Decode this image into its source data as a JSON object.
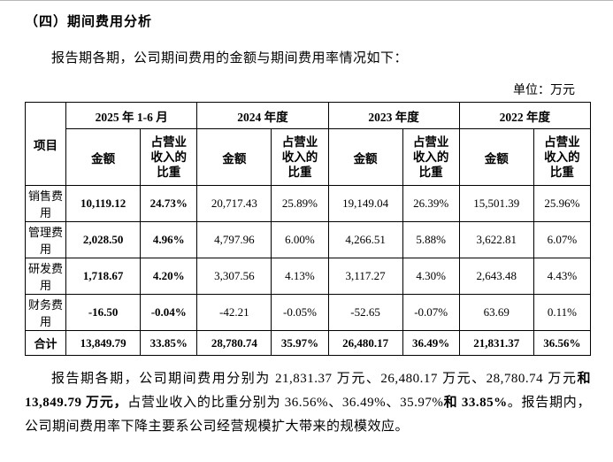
{
  "page": {
    "heading": "（四）期间费用分析",
    "intro": "报告期各期，公司期间费用的金额与期间费用率情况如下：",
    "unit_label": "单位：万元"
  },
  "table": {
    "item_header": "项目",
    "amount_header": "金额",
    "ratio_header": "占营业收入的比重",
    "periods": [
      "2025 年 1-6 月",
      "2024 年度",
      "2023 年度",
      "2022 年度"
    ],
    "rows": [
      {
        "item": "销售费用",
        "values": [
          "10,119.12",
          "24.73%",
          "20,717.43",
          "25.89%",
          "19,149.04",
          "26.39%",
          "15,501.39",
          "25.96%"
        ]
      },
      {
        "item": "管理费用",
        "values": [
          "2,028.50",
          "4.96%",
          "4,797.96",
          "6.00%",
          "4,266.51",
          "5.88%",
          "3,622.81",
          "6.07%"
        ]
      },
      {
        "item": "研发费用",
        "values": [
          "1,718.67",
          "4.20%",
          "3,307.56",
          "4.13%",
          "3,117.27",
          "4.30%",
          "2,643.48",
          "4.43%"
        ]
      },
      {
        "item": "财务费用",
        "values": [
          "-16.50",
          "-0.04%",
          "-42.21",
          "-0.05%",
          "-52.65",
          "-0.07%",
          "63.69",
          "0.11%"
        ]
      },
      {
        "item": "合计",
        "values": [
          "13,849.79",
          "33.85%",
          "28,780.74",
          "35.97%",
          "26,480.17",
          "36.49%",
          "21,831.37",
          "36.56%"
        ]
      }
    ]
  },
  "summary": {
    "seg1": "报告期各期，公司期间费用分别为 21,831.37 万元、26,480.17 万元、28,780.74 万元",
    "seg2": "和 13,849.79 万元，",
    "seg3": "占营业收入的比重分别为 36.56%、36.49%、35.97%",
    "seg4": "和 33.85%",
    "seg5": "。报告期内，公司期间费用率下降主要系公司经营规模扩大带来的规模效应。"
  }
}
